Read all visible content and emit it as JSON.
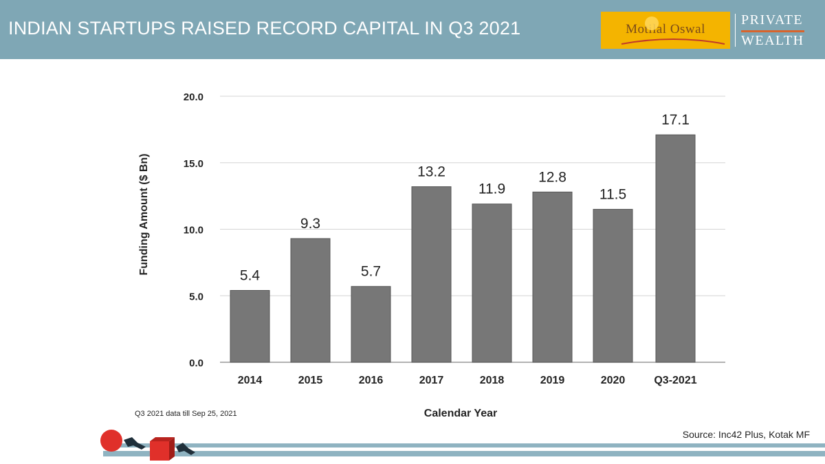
{
  "header": {
    "title": "INDIAN STARTUPS RAISED RECORD CAPITAL IN Q3 2021",
    "logo_text": "Motilal Oswal",
    "logo_pw_line1": "PRIVATE",
    "logo_pw_line2": "WEALTH"
  },
  "colors": {
    "header_bg": "#7fa7b5",
    "bar": "#777777",
    "logo_bg": "#f4b400",
    "accent_red": "#e0302a"
  },
  "chart_data": {
    "type": "bar",
    "categories": [
      "2014",
      "2015",
      "2016",
      "2017",
      "2018",
      "2019",
      "2020",
      "Q3-2021"
    ],
    "values": [
      5.4,
      9.3,
      5.7,
      13.2,
      11.9,
      12.8,
      11.5,
      17.1
    ],
    "value_labels": [
      "5.4",
      "9.3",
      "5.7",
      "13.2",
      "11.9",
      "12.8",
      "11.5",
      "17.1"
    ],
    "title": "",
    "xlabel": "Calendar Year",
    "ylabel": "Funding Amount ($ Bn)",
    "ylim": [
      0,
      20
    ],
    "yticks": [
      0,
      5,
      10,
      15,
      20
    ],
    "ytick_labels": [
      "0.0",
      "5.0",
      "10.0",
      "15.0",
      "20.0"
    ],
    "grid": true,
    "legend": "none"
  },
  "footnote": "Q3 2021 data till Sep 25, 2021",
  "source": "Source: Inc42 Plus, Kotak MF"
}
